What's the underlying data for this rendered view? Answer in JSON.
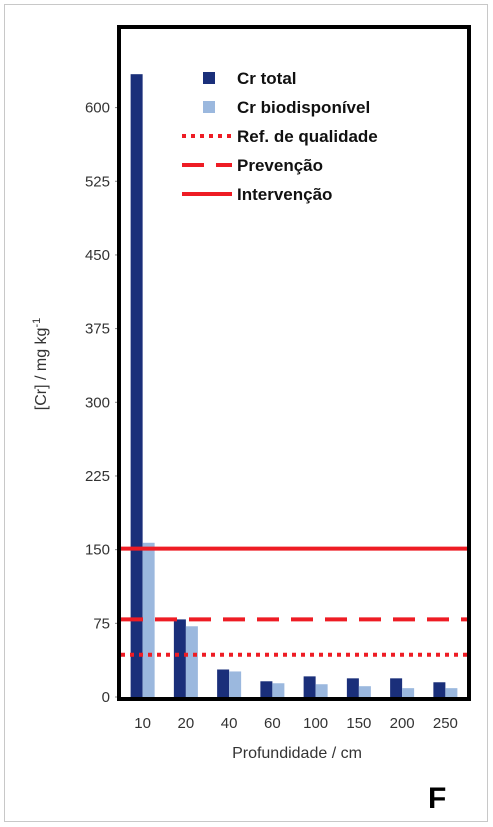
{
  "chart_data": {
    "type": "bar",
    "title": "",
    "panel_label": "F",
    "xlabel": "Profundidade / cm",
    "ylabel_main": "[Cr] / mg kg",
    "ylabel_superscript": "-1",
    "categories": [
      "10",
      "20",
      "40",
      "60",
      "100",
      "150",
      "200",
      "250"
    ],
    "series": [
      {
        "name": "Cr total",
        "color": "#1a2f7a",
        "values": [
          634,
          79,
          28,
          16,
          21,
          19,
          19,
          15
        ]
      },
      {
        "name": "Cr biodisponível",
        "color": "#9bb8de",
        "values": [
          157,
          72,
          26,
          14,
          13,
          11,
          9,
          9
        ]
      }
    ],
    "reference_lines": [
      {
        "name": "Ref. de qualidade",
        "value": 43,
        "style": "dotted",
        "color": "#ee1c24"
      },
      {
        "name": "Prevenção",
        "value": 79,
        "style": "dashed",
        "color": "#ee1c24"
      },
      {
        "name": "Intervenção",
        "value": 151,
        "style": "solid",
        "color": "#ee1c24"
      }
    ],
    "yticks": [
      "0",
      "75",
      "150",
      "225",
      "300",
      "375",
      "450",
      "525",
      "600"
    ],
    "ylim": [
      0,
      680
    ],
    "grid": false,
    "legend_position": "top-right"
  }
}
